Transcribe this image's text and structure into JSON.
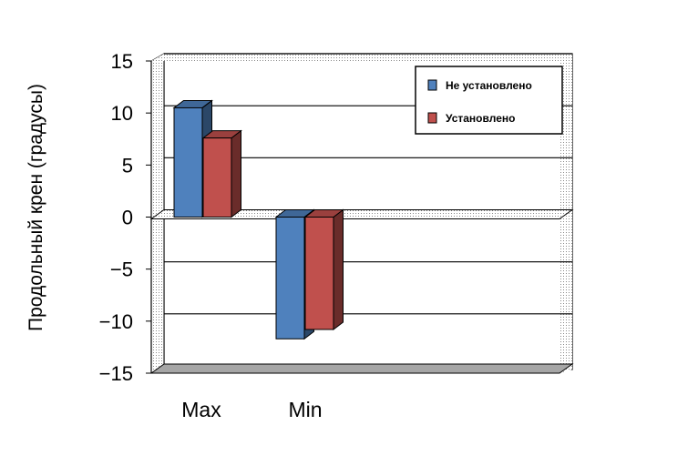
{
  "chart_data": {
    "type": "bar",
    "title": "",
    "xlabel": "",
    "ylabel": "Продольный крен (градусы)",
    "categories": [
      "Max",
      "Min"
    ],
    "series": [
      {
        "name": "Не установлено",
        "values": [
          10.5,
          -11.7
        ],
        "color": "#4f81bd"
      },
      {
        "name": "Установлено",
        "values": [
          7.6,
          -10.8
        ],
        "color": "#c0504d"
      }
    ],
    "ylim": [
      -15,
      15
    ],
    "yticks": [
      15,
      10,
      5,
      0,
      -5,
      -10,
      -15
    ],
    "ytick_labels": [
      "15",
      "10",
      "5",
      "0",
      "−5",
      "−10",
      "−15"
    ],
    "grid": true,
    "legend": "top-right",
    "style": "3d"
  }
}
